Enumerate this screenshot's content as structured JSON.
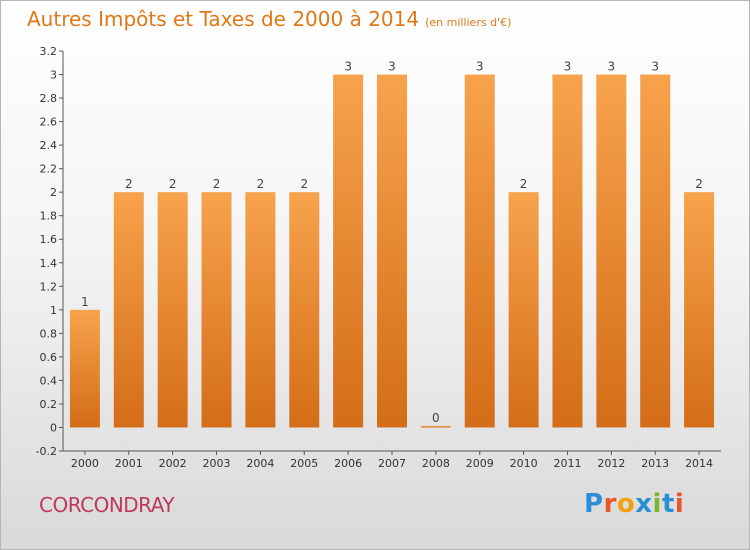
{
  "header": {
    "title": "Autres Impôts et Taxes de 2000 à 2014",
    "unit": "(en milliers d'€)"
  },
  "commune": "CORCONDRAY",
  "logo": {
    "text": "Proxiti",
    "colors": [
      "#2a8fd4",
      "#e8562a",
      "#f2a10c",
      "#2a8fd4",
      "#7cb82f",
      "#2a8fd4",
      "#e8562a"
    ]
  },
  "colors": {
    "bar_light": "#f7a34c",
    "bar_dark": "#d46d17",
    "title": "#e07818",
    "commune": "#c0395c",
    "axis": "#555555"
  },
  "chart_data": {
    "type": "bar",
    "title": "Autres Impôts et Taxes de 2000 à 2014",
    "categories": [
      "2000",
      "2001",
      "2002",
      "2003",
      "2004",
      "2005",
      "2006",
      "2007",
      "2008",
      "2009",
      "2010",
      "2011",
      "2012",
      "2013",
      "2014"
    ],
    "values": [
      1,
      2,
      2,
      2,
      2,
      2,
      3,
      3,
      0,
      3,
      2,
      3,
      3,
      3,
      2
    ],
    "data_labels": [
      "1",
      "2",
      "2",
      "2",
      "2",
      "2",
      "3",
      "3",
      "0",
      "3",
      "2",
      "3",
      "3",
      "3",
      "2"
    ],
    "ylim": [
      -0.2,
      3.2
    ],
    "yticks": [
      -0.2,
      0,
      0.2,
      0.4,
      0.6,
      0.8,
      1,
      1.2,
      1.4,
      1.6,
      1.8,
      2,
      2.2,
      2.4,
      2.6,
      2.8,
      3,
      3.2
    ],
    "ytick_labels": [
      "-0.2",
      "0",
      "0.2",
      "0.4",
      "0.6",
      "0.8",
      "1",
      "1.2",
      "1.4",
      "1.6",
      "1.8",
      "2",
      "2.2",
      "2.4",
      "2.6",
      "2.8",
      "3",
      "3.2"
    ],
    "grid": false,
    "xlabel": "",
    "ylabel": ""
  }
}
